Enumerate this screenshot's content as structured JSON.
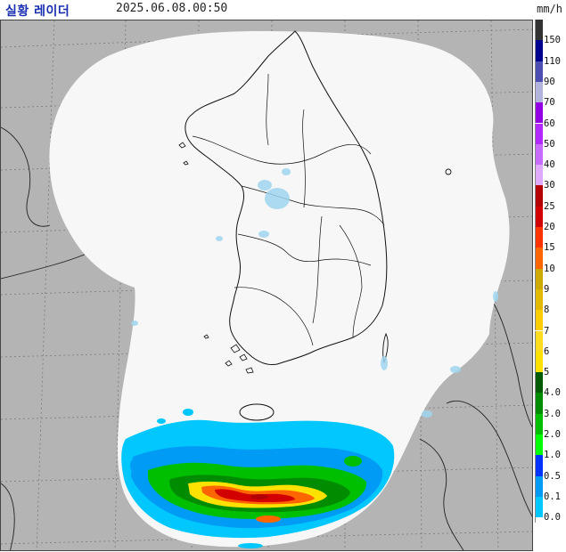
{
  "header": {
    "title": "실황 레이더",
    "timestamp": "2025.06.08.00:50",
    "unit": "mm/h"
  },
  "legend": {
    "levels": [
      {
        "label": "150",
        "color": "#333333"
      },
      {
        "label": "110",
        "color": "#000390"
      },
      {
        "label": "90",
        "color": "#4c4eb1"
      },
      {
        "label": "70",
        "color": "#b3b4de"
      },
      {
        "label": "60",
        "color": "#9300e4"
      },
      {
        "label": "50",
        "color": "#b229ff"
      },
      {
        "label": "40",
        "color": "#c86bff"
      },
      {
        "label": "30",
        "color": "#dea9ff"
      },
      {
        "label": "25",
        "color": "#b40000"
      },
      {
        "label": "20",
        "color": "#d20000"
      },
      {
        "label": "15",
        "color": "#ff3300"
      },
      {
        "label": "10",
        "color": "#ff6600"
      },
      {
        "label": "9",
        "color": "#ccaa00"
      },
      {
        "label": "8",
        "color": "#e0b900"
      },
      {
        "label": "7",
        "color": "#f9cd00"
      },
      {
        "label": "6",
        "color": "#ffdc1f"
      },
      {
        "label": "5",
        "color": "#ffe100"
      },
      {
        "label": "4.0",
        "color": "#005a00"
      },
      {
        "label": "3.0",
        "color": "#008c00"
      },
      {
        "label": "2.0",
        "color": "#00be00"
      },
      {
        "label": "1.0",
        "color": "#00ff00"
      },
      {
        "label": "0.5",
        "color": "#0033ff"
      },
      {
        "label": "0.1",
        "color": "#009bf5"
      },
      {
        "label": "0.0",
        "color": "#00c8ff"
      }
    ],
    "zero_color": "#ffffff"
  },
  "map": {
    "ocean_color": "#b4b4b4",
    "coverage_color": "#f7f7f7",
    "land_outline_color": "#111111",
    "grid_color": "#7a7a7a"
  }
}
